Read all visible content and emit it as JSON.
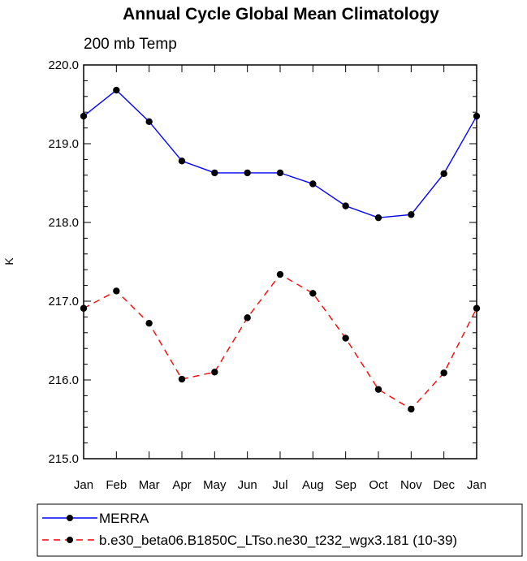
{
  "chart_data": {
    "type": "line",
    "title": "Annual Cycle Global Mean Climatology",
    "subtitle": "200 mb Temp",
    "xlabel": "",
    "ylabel": "K",
    "categories": [
      "Jan",
      "Feb",
      "Mar",
      "Apr",
      "May",
      "Jun",
      "Jul",
      "Aug",
      "Sep",
      "Oct",
      "Nov",
      "Dec",
      "Jan"
    ],
    "ylim": [
      215.0,
      220.0
    ],
    "yticks": [
      "215.0",
      "216.0",
      "217.0",
      "218.0",
      "219.0",
      "220.0"
    ],
    "grid": false,
    "legend_position": "bottom",
    "series": [
      {
        "name": "MERRA",
        "color": "#0000ff",
        "dash": "solid",
        "values": [
          219.35,
          219.68,
          219.28,
          218.78,
          218.63,
          218.63,
          218.63,
          218.49,
          218.21,
          218.06,
          218.1,
          218.62,
          219.35
        ]
      },
      {
        "name": "b.e30_beta06.B1850C_LTso.ne30_t232_wgx3.181 (10-39)",
        "color": "#ff0000",
        "dash": "dashed",
        "values": [
          216.91,
          217.13,
          216.72,
          216.01,
          216.1,
          216.79,
          217.34,
          217.1,
          216.53,
          215.88,
          215.63,
          216.09,
          216.91
        ]
      }
    ]
  }
}
